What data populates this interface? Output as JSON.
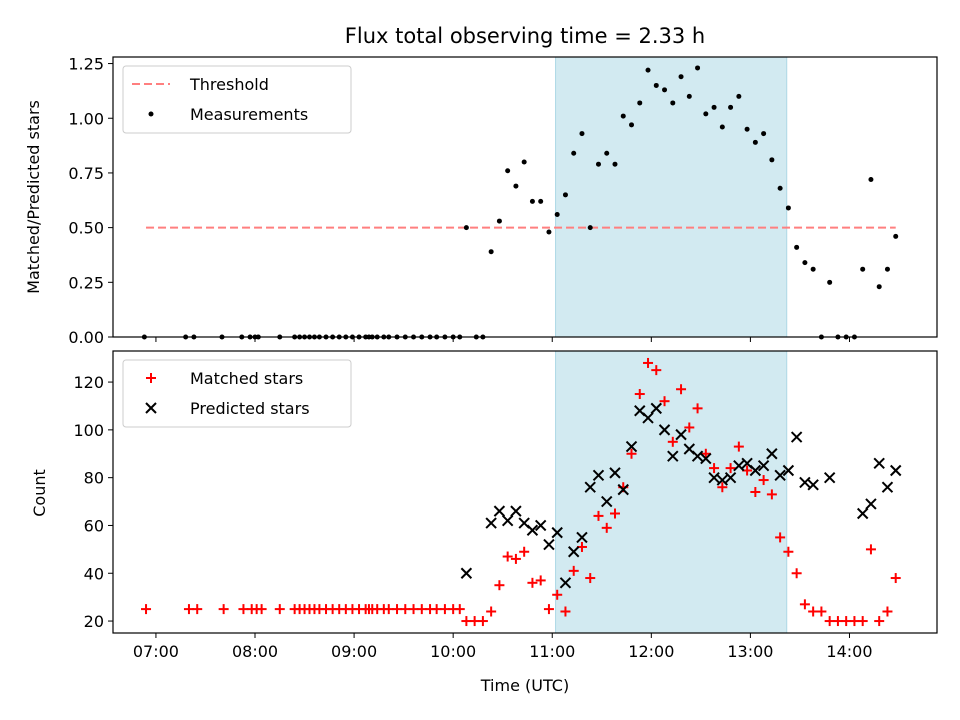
{
  "title": "Flux total observing time = 2.33 h",
  "colors": {
    "threshold": "#ff7f7f",
    "measurements": "#000000",
    "matched": "#ff0000",
    "predicted": "#000000",
    "span": "#add8e6"
  },
  "chart_data": [
    {
      "type": "scatter",
      "ylabel": "Matched/Predicted stars",
      "ylim": [
        0,
        1.28
      ],
      "yticks": [
        0,
        0.25,
        0.5,
        0.75,
        1.0,
        1.25
      ],
      "ytick_labels": [
        "0.00",
        "0.25",
        "0.50",
        "0.75",
        "1.00",
        "1.25"
      ],
      "xlim": [
        "06:34",
        "14:53"
      ],
      "shaded_span": [
        "11:02",
        "13:22"
      ],
      "legend_position": "upper left",
      "threshold": {
        "name": "Threshold",
        "value": 0.5,
        "x_range": [
          "06:54",
          "14:28"
        ]
      },
      "series": [
        {
          "name": "Measurements",
          "points": [
            [
              "06:53",
              0
            ],
            [
              "07:18",
              0
            ],
            [
              "07:23",
              0
            ],
            [
              "07:40",
              0
            ],
            [
              "07:52",
              0
            ],
            [
              "07:57",
              0
            ],
            [
              "08:00",
              0
            ],
            [
              "08:02",
              0
            ],
            [
              "08:15",
              0
            ],
            [
              "08:24",
              0
            ],
            [
              "08:27",
              0
            ],
            [
              "08:30",
              0
            ],
            [
              "08:33",
              0
            ],
            [
              "08:36",
              0
            ],
            [
              "08:39",
              0
            ],
            [
              "08:43",
              0
            ],
            [
              "08:47",
              0
            ],
            [
              "08:51",
              0
            ],
            [
              "08:55",
              0
            ],
            [
              "08:59",
              0
            ],
            [
              "09:03",
              0
            ],
            [
              "09:07",
              0
            ],
            [
              "09:09",
              0
            ],
            [
              "09:11",
              0
            ],
            [
              "09:14",
              0
            ],
            [
              "09:18",
              0
            ],
            [
              "09:21",
              0
            ],
            [
              "09:26",
              0
            ],
            [
              "09:31",
              0
            ],
            [
              "09:36",
              0
            ],
            [
              "09:41",
              0
            ],
            [
              "09:46",
              0
            ],
            [
              "09:50",
              0
            ],
            [
              "09:55",
              0
            ],
            [
              "10:00",
              0
            ],
            [
              "10:04",
              0
            ],
            [
              "10:08",
              0.5
            ],
            [
              "10:14",
              0
            ],
            [
              "10:18",
              0
            ],
            [
              "10:23",
              0.39
            ],
            [
              "10:28",
              0.53
            ],
            [
              "10:33",
              0.76
            ],
            [
              "10:38",
              0.69
            ],
            [
              "10:43",
              0.8
            ],
            [
              "10:48",
              0.62
            ],
            [
              "10:53",
              0.62
            ],
            [
              "10:58",
              0.48
            ],
            [
              "11:03",
              0.56
            ],
            [
              "11:08",
              0.65
            ],
            [
              "11:13",
              0.84
            ],
            [
              "11:18",
              0.93
            ],
            [
              "11:23",
              0.5
            ],
            [
              "11:28",
              0.79
            ],
            [
              "11:33",
              0.84
            ],
            [
              "11:38",
              0.79
            ],
            [
              "11:43",
              1.01
            ],
            [
              "11:48",
              0.97
            ],
            [
              "11:53",
              1.07
            ],
            [
              "11:58",
              1.22
            ],
            [
              "12:03",
              1.15
            ],
            [
              "12:08",
              1.13
            ],
            [
              "12:13",
              1.07
            ],
            [
              "12:18",
              1.19
            ],
            [
              "12:23",
              1.1
            ],
            [
              "12:28",
              1.23
            ],
            [
              "12:33",
              1.02
            ],
            [
              "12:38",
              1.05
            ],
            [
              "12:43",
              0.96
            ],
            [
              "12:48",
              1.05
            ],
            [
              "12:53",
              1.1
            ],
            [
              "12:58",
              0.95
            ],
            [
              "13:03",
              0.89
            ],
            [
              "13:08",
              0.93
            ],
            [
              "13:13",
              0.81
            ],
            [
              "13:18",
              0.68
            ],
            [
              "13:23",
              0.59
            ],
            [
              "13:28",
              0.41
            ],
            [
              "13:33",
              0.34
            ],
            [
              "13:38",
              0.31
            ],
            [
              "13:43",
              0
            ],
            [
              "13:48",
              0.25
            ],
            [
              "13:53",
              0
            ],
            [
              "13:58",
              0
            ],
            [
              "14:03",
              0
            ],
            [
              "14:08",
              0.31
            ],
            [
              "14:13",
              0.72
            ],
            [
              "14:18",
              0.23
            ],
            [
              "14:23",
              0.31
            ],
            [
              "14:28",
              0.46
            ]
          ]
        }
      ]
    },
    {
      "type": "scatter",
      "xlabel": "Time (UTC)",
      "ylabel": "Count",
      "ylim": [
        15,
        133
      ],
      "yticks": [
        20,
        40,
        60,
        80,
        100,
        120
      ],
      "ytick_labels": [
        "20",
        "40",
        "60",
        "80",
        "100",
        "120"
      ],
      "xlim": [
        "06:34",
        "14:53"
      ],
      "xticks": [
        "07:00",
        "08:00",
        "09:00",
        "10:00",
        "11:00",
        "12:00",
        "13:00",
        "14:00"
      ],
      "xtick_labels": [
        "07:00",
        "08:00",
        "09:00",
        "10:00",
        "11:00",
        "12:00",
        "13:00",
        "14:00"
      ],
      "shaded_span": [
        "11:02",
        "13:22"
      ],
      "legend_position": "upper left",
      "series": [
        {
          "name": "Matched stars",
          "marker": "+",
          "points": [
            [
              "06:54",
              25
            ],
            [
              "07:20",
              25
            ],
            [
              "07:25",
              25
            ],
            [
              "07:41",
              25
            ],
            [
              "07:53",
              25
            ],
            [
              "07:58",
              25
            ],
            [
              "08:01",
              25
            ],
            [
              "08:04",
              25
            ],
            [
              "08:15",
              25
            ],
            [
              "08:24",
              25
            ],
            [
              "08:27",
              25
            ],
            [
              "08:30",
              25
            ],
            [
              "08:33",
              25
            ],
            [
              "08:36",
              25
            ],
            [
              "08:39",
              25
            ],
            [
              "08:43",
              25
            ],
            [
              "08:47",
              25
            ],
            [
              "08:51",
              25
            ],
            [
              "08:55",
              25
            ],
            [
              "08:59",
              25
            ],
            [
              "09:03",
              25
            ],
            [
              "09:07",
              25
            ],
            [
              "09:09",
              25
            ],
            [
              "09:11",
              25
            ],
            [
              "09:14",
              25
            ],
            [
              "09:18",
              25
            ],
            [
              "09:21",
              25
            ],
            [
              "09:26",
              25
            ],
            [
              "09:31",
              25
            ],
            [
              "09:36",
              25
            ],
            [
              "09:41",
              25
            ],
            [
              "09:46",
              25
            ],
            [
              "09:50",
              25
            ],
            [
              "09:55",
              25
            ],
            [
              "10:00",
              25
            ],
            [
              "10:04",
              25
            ],
            [
              "10:08",
              20
            ],
            [
              "10:13",
              20
            ],
            [
              "10:18",
              20
            ],
            [
              "10:23",
              24
            ],
            [
              "10:28",
              35
            ],
            [
              "10:33",
              47
            ],
            [
              "10:38",
              46
            ],
            [
              "10:43",
              49
            ],
            [
              "10:48",
              36
            ],
            [
              "10:53",
              37
            ],
            [
              "10:58",
              25
            ],
            [
              "11:03",
              31
            ],
            [
              "11:08",
              24
            ],
            [
              "11:13",
              41
            ],
            [
              "11:18",
              51
            ],
            [
              "11:23",
              38
            ],
            [
              "11:28",
              64
            ],
            [
              "11:33",
              59
            ],
            [
              "11:38",
              65
            ],
            [
              "11:43",
              76
            ],
            [
              "11:48",
              90
            ],
            [
              "11:53",
              115
            ],
            [
              "11:58",
              128
            ],
            [
              "12:03",
              125
            ],
            [
              "12:08",
              112
            ],
            [
              "12:13",
              95
            ],
            [
              "12:18",
              117
            ],
            [
              "12:23",
              101
            ],
            [
              "12:28",
              109
            ],
            [
              "12:33",
              90
            ],
            [
              "12:38",
              84
            ],
            [
              "12:43",
              76
            ],
            [
              "12:48",
              84
            ],
            [
              "12:53",
              93
            ],
            [
              "12:58",
              83
            ],
            [
              "13:03",
              74
            ],
            [
              "13:08",
              79
            ],
            [
              "13:13",
              73
            ],
            [
              "13:18",
              55
            ],
            [
              "13:23",
              49
            ],
            [
              "13:28",
              40
            ],
            [
              "13:33",
              27
            ],
            [
              "13:38",
              24
            ],
            [
              "13:43",
              24
            ],
            [
              "13:48",
              20
            ],
            [
              "13:53",
              20
            ],
            [
              "13:58",
              20
            ],
            [
              "14:03",
              20
            ],
            [
              "14:08",
              20
            ],
            [
              "14:13",
              50
            ],
            [
              "14:18",
              20
            ],
            [
              "14:23",
              24
            ],
            [
              "14:28",
              38
            ]
          ]
        },
        {
          "name": "Predicted stars",
          "marker": "x",
          "points": [
            [
              "10:08",
              40
            ],
            [
              "10:23",
              61
            ],
            [
              "10:28",
              66
            ],
            [
              "10:33",
              62
            ],
            [
              "10:38",
              66
            ],
            [
              "10:43",
              61
            ],
            [
              "10:48",
              58
            ],
            [
              "10:53",
              60
            ],
            [
              "10:58",
              52
            ],
            [
              "11:03",
              57
            ],
            [
              "11:08",
              36
            ],
            [
              "11:13",
              49
            ],
            [
              "11:18",
              55
            ],
            [
              "11:23",
              76
            ],
            [
              "11:28",
              81
            ],
            [
              "11:33",
              70
            ],
            [
              "11:38",
              82
            ],
            [
              "11:43",
              75
            ],
            [
              "11:48",
              93
            ],
            [
              "11:53",
              108
            ],
            [
              "11:58",
              105
            ],
            [
              "12:03",
              109
            ],
            [
              "12:08",
              100
            ],
            [
              "12:13",
              89
            ],
            [
              "12:18",
              98
            ],
            [
              "12:23",
              92
            ],
            [
              "12:28",
              89
            ],
            [
              "12:33",
              88
            ],
            [
              "12:38",
              80
            ],
            [
              "12:43",
              79
            ],
            [
              "12:48",
              80
            ],
            [
              "12:53",
              85
            ],
            [
              "12:58",
              86
            ],
            [
              "13:03",
              83
            ],
            [
              "13:08",
              85
            ],
            [
              "13:13",
              90
            ],
            [
              "13:18",
              81
            ],
            [
              "13:23",
              83
            ],
            [
              "13:28",
              97
            ],
            [
              "13:33",
              78
            ],
            [
              "13:38",
              77
            ],
            [
              "13:48",
              80
            ],
            [
              "14:08",
              65
            ],
            [
              "14:13",
              69
            ],
            [
              "14:18",
              86
            ],
            [
              "14:23",
              76
            ],
            [
              "14:28",
              83
            ]
          ]
        }
      ]
    }
  ]
}
